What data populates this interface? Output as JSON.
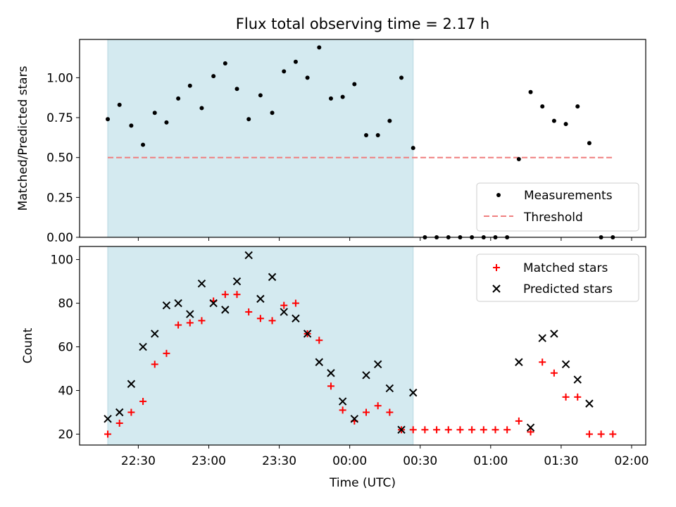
{
  "chart_data": [
    {
      "type": "scatter",
      "title": "Flux total observing time = 2.17 h",
      "xlabel": "",
      "ylabel": "Matched/Predicted stars",
      "ylim": [
        0,
        1.24
      ],
      "yticks": [
        "0.00",
        "0.25",
        "0.50",
        "0.75",
        "1.00"
      ],
      "xlim": [
        "22:05",
        "02:06"
      ],
      "xticks": [
        "22:30",
        "23:00",
        "23:30",
        "00:00",
        "00:30",
        "01:00",
        "01:30",
        "02:00"
      ],
      "shaded_interval": {
        "start": "22:17",
        "end": "00:27",
        "color": "#d4eaf0"
      },
      "threshold": {
        "name": "Threshold",
        "value": 0.5,
        "start": "22:17",
        "end": "01:52",
        "color": "#ef7f7f"
      },
      "legend": {
        "position": "lower-right",
        "entries": [
          "Measurements",
          "Threshold"
        ]
      },
      "series": [
        {
          "name": "Measurements",
          "marker": "dot",
          "color": "#000000",
          "points": [
            [
              "22:17",
              0.74
            ],
            [
              "22:22",
              0.83
            ],
            [
              "22:27",
              0.7
            ],
            [
              "22:32",
              0.58
            ],
            [
              "22:37",
              0.78
            ],
            [
              "22:42",
              0.72
            ],
            [
              "22:47",
              0.87
            ],
            [
              "22:52",
              0.95
            ],
            [
              "22:57",
              0.81
            ],
            [
              "23:02",
              1.01
            ],
            [
              "23:07",
              1.09
            ],
            [
              "23:12",
              0.93
            ],
            [
              "23:17",
              0.74
            ],
            [
              "23:22",
              0.89
            ],
            [
              "23:27",
              0.78
            ],
            [
              "23:32",
              1.04
            ],
            [
              "23:37",
              1.1
            ],
            [
              "23:42",
              1.0
            ],
            [
              "23:47",
              1.19
            ],
            [
              "23:52",
              0.87
            ],
            [
              "23:57",
              0.88
            ],
            [
              "00:02",
              0.96
            ],
            [
              "00:07",
              0.64
            ],
            [
              "00:12",
              0.64
            ],
            [
              "00:17",
              0.73
            ],
            [
              "00:22",
              1.0
            ],
            [
              "00:27",
              0.56
            ],
            [
              "00:32",
              0.0
            ],
            [
              "00:37",
              0.0
            ],
            [
              "00:42",
              0.0
            ],
            [
              "00:47",
              0.0
            ],
            [
              "00:52",
              0.0
            ],
            [
              "00:57",
              0.0
            ],
            [
              "01:02",
              0.0
            ],
            [
              "01:07",
              0.0
            ],
            [
              "01:12",
              0.49
            ],
            [
              "01:17",
              0.91
            ],
            [
              "01:22",
              0.82
            ],
            [
              "01:27",
              0.73
            ],
            [
              "01:32",
              0.71
            ],
            [
              "01:37",
              0.82
            ],
            [
              "01:42",
              0.59
            ],
            [
              "01:47",
              0.0
            ],
            [
              "01:52",
              0.0
            ]
          ]
        }
      ]
    },
    {
      "type": "scatter",
      "title": "",
      "xlabel": "Time (UTC)",
      "ylabel": "Count",
      "ylim": [
        15,
        106
      ],
      "yticks": [
        "20",
        "40",
        "60",
        "80",
        "100"
      ],
      "xlim": [
        "22:05",
        "02:06"
      ],
      "xticks": [
        "22:30",
        "23:00",
        "23:30",
        "00:00",
        "00:30",
        "01:00",
        "01:30",
        "02:00"
      ],
      "shaded_interval": {
        "start": "22:17",
        "end": "00:27",
        "color": "#d4eaf0"
      },
      "legend": {
        "position": "upper-right",
        "entries": [
          "Matched stars",
          "Predicted stars"
        ]
      },
      "series": [
        {
          "name": "Matched stars",
          "marker": "plus",
          "color": "#ff0000",
          "points": [
            [
              "22:17",
              20
            ],
            [
              "22:22",
              25
            ],
            [
              "22:27",
              30
            ],
            [
              "22:32",
              35
            ],
            [
              "22:37",
              52
            ],
            [
              "22:42",
              57
            ],
            [
              "22:47",
              70
            ],
            [
              "22:52",
              71
            ],
            [
              "22:57",
              72
            ],
            [
              "23:02",
              81
            ],
            [
              "23:07",
              84
            ],
            [
              "23:12",
              84
            ],
            [
              "23:17",
              76
            ],
            [
              "23:22",
              73
            ],
            [
              "23:27",
              72
            ],
            [
              "23:32",
              79
            ],
            [
              "23:37",
              80
            ],
            [
              "23:42",
              66
            ],
            [
              "23:47",
              63
            ],
            [
              "23:52",
              42
            ],
            [
              "23:57",
              31
            ],
            [
              "00:02",
              26
            ],
            [
              "00:07",
              30
            ],
            [
              "00:12",
              33
            ],
            [
              "00:17",
              30
            ],
            [
              "00:22",
              22
            ],
            [
              "00:27",
              22
            ],
            [
              "00:32",
              22
            ],
            [
              "00:37",
              22
            ],
            [
              "00:42",
              22
            ],
            [
              "00:47",
              22
            ],
            [
              "00:52",
              22
            ],
            [
              "00:57",
              22
            ],
            [
              "01:02",
              22
            ],
            [
              "01:07",
              22
            ],
            [
              "01:12",
              26
            ],
            [
              "01:17",
              21
            ],
            [
              "01:22",
              53
            ],
            [
              "01:27",
              48
            ],
            [
              "01:32",
              37
            ],
            [
              "01:37",
              37
            ],
            [
              "01:42",
              20
            ],
            [
              "01:47",
              20
            ],
            [
              "01:52",
              20
            ]
          ]
        },
        {
          "name": "Predicted stars",
          "marker": "x",
          "color": "#000000",
          "points": [
            [
              "22:17",
              27
            ],
            [
              "22:22",
              30
            ],
            [
              "22:27",
              43
            ],
            [
              "22:32",
              60
            ],
            [
              "22:37",
              66
            ],
            [
              "22:42",
              79
            ],
            [
              "22:47",
              80
            ],
            [
              "22:52",
              75
            ],
            [
              "22:57",
              89
            ],
            [
              "23:02",
              80
            ],
            [
              "23:07",
              77
            ],
            [
              "23:12",
              90
            ],
            [
              "23:17",
              102
            ],
            [
              "23:22",
              82
            ],
            [
              "23:27",
              92
            ],
            [
              "23:32",
              76
            ],
            [
              "23:37",
              73
            ],
            [
              "23:42",
              66
            ],
            [
              "23:47",
              53
            ],
            [
              "23:52",
              48
            ],
            [
              "23:57",
              35
            ],
            [
              "00:02",
              27
            ],
            [
              "00:07",
              47
            ],
            [
              "00:12",
              52
            ],
            [
              "00:17",
              41
            ],
            [
              "00:22",
              22
            ],
            [
              "00:27",
              39
            ],
            [
              "01:12",
              53
            ],
            [
              "01:17",
              23
            ],
            [
              "01:22",
              64
            ],
            [
              "01:27",
              66
            ],
            [
              "01:32",
              52
            ],
            [
              "01:37",
              45
            ],
            [
              "01:42",
              34
            ]
          ]
        }
      ]
    }
  ]
}
